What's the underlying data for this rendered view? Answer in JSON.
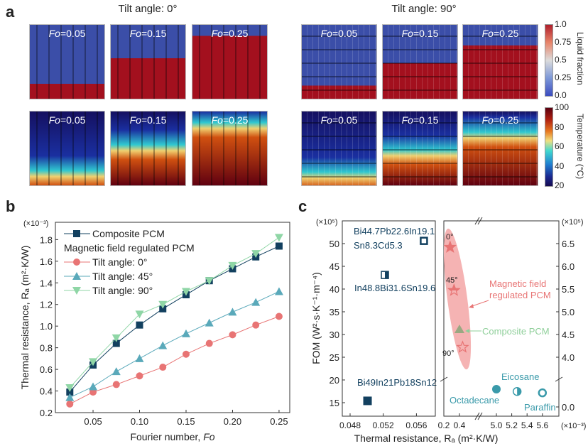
{
  "panel_a": {
    "label": "a",
    "groups": [
      {
        "title": "Tilt angle: 0°",
        "fo_labels": [
          "0.05",
          "0.15",
          "0.25"
        ]
      },
      {
        "title": "Tilt angle: 90°",
        "fo_labels": [
          "0.05",
          "0.15",
          "0.25"
        ]
      }
    ],
    "fo_prefix": "Fo",
    "colorbars": [
      {
        "title": "Liquid fraction",
        "ticks": [
          "1.0",
          "0.75",
          "0.5",
          "0.25",
          "0.0"
        ]
      },
      {
        "title": "Temperature (°C)",
        "ticks": [
          "100",
          "80",
          "60",
          "40",
          "20"
        ]
      }
    ]
  },
  "chart_data": [
    {
      "panel": "b",
      "type": "line",
      "x": [
        0.025,
        0.05,
        0.075,
        0.1,
        0.125,
        0.15,
        0.175,
        0.2,
        0.225,
        0.25
      ],
      "series": [
        {
          "name": "Composite PCM",
          "marker": "square",
          "color": "#12405f",
          "values": [
            0.39,
            0.64,
            0.84,
            1.01,
            1.16,
            1.29,
            1.42,
            1.53,
            1.64,
            1.74
          ]
        },
        {
          "name": "Tilt angle: 0°",
          "marker": "circle",
          "color": "#e87474",
          "values": [
            0.28,
            0.39,
            0.46,
            0.54,
            0.62,
            0.74,
            0.84,
            0.92,
            1.01,
            1.09
          ]
        },
        {
          "name": "Tilt angle: 45°",
          "marker": "triangle-up",
          "color": "#5aa9ba",
          "values": [
            0.34,
            0.44,
            0.58,
            0.7,
            0.82,
            0.93,
            1.03,
            1.13,
            1.22,
            1.32
          ]
        },
        {
          "name": "Tilt angle: 90°",
          "marker": "triangle-down",
          "color": "#8fd6a6",
          "values": [
            0.43,
            0.67,
            0.89,
            1.11,
            1.2,
            1.32,
            1.42,
            1.56,
            1.67,
            1.82
          ]
        }
      ],
      "legend_group_title": "Magnetic field regulated PCM",
      "xlabel": "Fourier number, ",
      "xlabel_italic": "Fo",
      "ylabel": "Thermal resistance, Rₐ (m²·K/W)",
      "y_multiplier": "(×10⁻³)",
      "xlim": [
        0.0095,
        0.2615
      ],
      "ylim": [
        0.2,
        1.96
      ],
      "xticks": [
        "0.05",
        "0.10",
        "0.15",
        "0.20",
        "0.25"
      ],
      "yticks": [
        "0.2",
        "0.4",
        "0.6",
        "0.8",
        "1.0",
        "1.2",
        "1.4",
        "1.6",
        "1.8"
      ],
      "legend": "top-left",
      "grid": false
    },
    {
      "panel": "c",
      "type": "scatter",
      "xlabel": "Thermal resistance, Rₐ (m²·K/W)",
      "ylabel": "FOM (W²·s·K⁻¹·m⁻⁴)",
      "left_y_multiplier": "(×10⁵)",
      "right_y_multiplier": "(×10⁵)",
      "right_x_multiplier": "(×10⁻³)",
      "left": {
        "xlim": [
          0.047,
          0.0583
        ],
        "ylim": [
          12,
          55
        ],
        "xticks": [
          "0.048",
          "0.052",
          "0.056"
        ],
        "yticks": [
          "15",
          "20",
          "25",
          "30",
          "35",
          "40",
          "45",
          "50"
        ],
        "points": [
          {
            "label": [
              "Bi44.7Pb22.6In19.1",
              "Sn8.3Cd5.3"
            ],
            "x": 0.0569,
            "y": 50.6,
            "marker": "square-open"
          },
          {
            "label": [
              "In48.8Bi31.6Sn19.6"
            ],
            "x": 0.0522,
            "y": 43.1,
            "marker": "square-half"
          },
          {
            "label": [
              "Bi49In21Pb18Sn12"
            ],
            "x": 0.0501,
            "y": 15.4,
            "marker": "square-filled"
          }
        ],
        "color": "#12405f"
      },
      "right": {
        "xticks": [
          "0.2",
          "0.4",
          "5.0",
          "5.2",
          "5.4",
          "5.6"
        ],
        "yticks": [
          "6.5",
          "6.0",
          "5.5",
          "5.0",
          "4.5",
          "4.0",
          "0.0"
        ],
        "axis_breaks": true,
        "points": [
          {
            "label": "0°",
            "x": 0.28,
            "y": 6.42,
            "marker": "star-filled",
            "color": "#e87474"
          },
          {
            "label": "45°",
            "x": 0.33,
            "y": 5.47,
            "marker": "star-half",
            "color": "#e87474"
          },
          {
            "label": "",
            "x": 0.4,
            "y": 4.61,
            "marker": "triangle",
            "color": "#9aa882"
          },
          {
            "label": "90°",
            "x": 0.44,
            "y": 4.22,
            "marker": "star-open",
            "color": "#e87474"
          },
          {
            "label": "Octadecane",
            "x": 5.0,
            "y": 0.39,
            "marker": "circle-filled",
            "color": "#3a9aaa"
          },
          {
            "label": "Eicosane",
            "x": 5.27,
            "y": 0.34,
            "marker": "circle-half",
            "color": "#3a9aaa"
          },
          {
            "label": "Paraffin",
            "x": 5.6,
            "y": 0.31,
            "marker": "circle-open",
            "color": "#3a9aaa"
          }
        ],
        "annotations": [
          {
            "text": [
              "Magnetic field",
              "regulated PCM"
            ],
            "color": "#e87474"
          },
          {
            "text": [
              "Composite PCM"
            ],
            "color": "#8fcf9a"
          }
        ],
        "highlight_color": "#f5b3b3"
      }
    }
  ]
}
